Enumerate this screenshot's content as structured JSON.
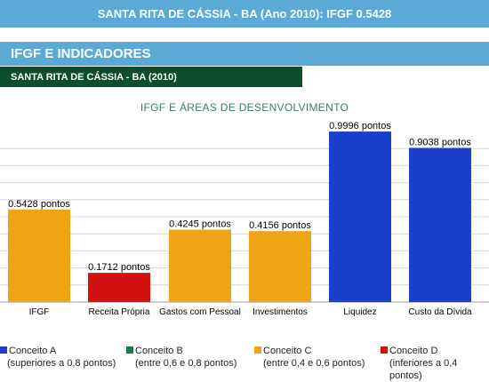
{
  "header": {
    "title": "SANTA RITA DE CÁSSIA - BA (Ano 2010): IFGF 0.5428"
  },
  "section": {
    "title": "IFGF E INDICADORES"
  },
  "subheader": {
    "title": "SANTA RITA DE CÁSSIA - BA (2010)"
  },
  "chart_data": {
    "type": "bar",
    "title": "IFGF E ÁREAS DE DESENVOLVIMENTO",
    "categories": [
      "IFGF",
      "Receita Própria",
      "Gastos com Pessoal",
      "Investimentos",
      "Liquidez",
      "Custo da Dívida"
    ],
    "values": [
      0.5428,
      0.1712,
      0.4245,
      0.4156,
      0.9996,
      0.9038
    ],
    "data_labels": [
      "0.5428 pontos",
      "0.1712 pontos",
      "0.4245 pontos",
      "0.4156 pontos",
      "0.9996 pontos",
      "0.9038 pontos"
    ],
    "bar_colors": [
      "#f0a313",
      "#d41111",
      "#f0a313",
      "#f0a313",
      "#1a3fcc",
      "#1a3fcc"
    ],
    "ylim": [
      0,
      1
    ],
    "grid": true
  },
  "legend": {
    "items": [
      {
        "label": "Conceito A",
        "sub": "(superiores a 0,8 pontos)",
        "color": "#1a3fcc"
      },
      {
        "label": "Conceito B",
        "sub": "(entre 0,6 e 0,8 pontos)",
        "color": "#1a7a4a"
      },
      {
        "label": "Conceito C",
        "sub": "(entre 0,4 e 0,6 pontos)",
        "color": "#f0a313"
      },
      {
        "label": "Conceito D",
        "sub": "(inferiores a 0,4 pontos)",
        "color": "#d41111"
      }
    ]
  }
}
